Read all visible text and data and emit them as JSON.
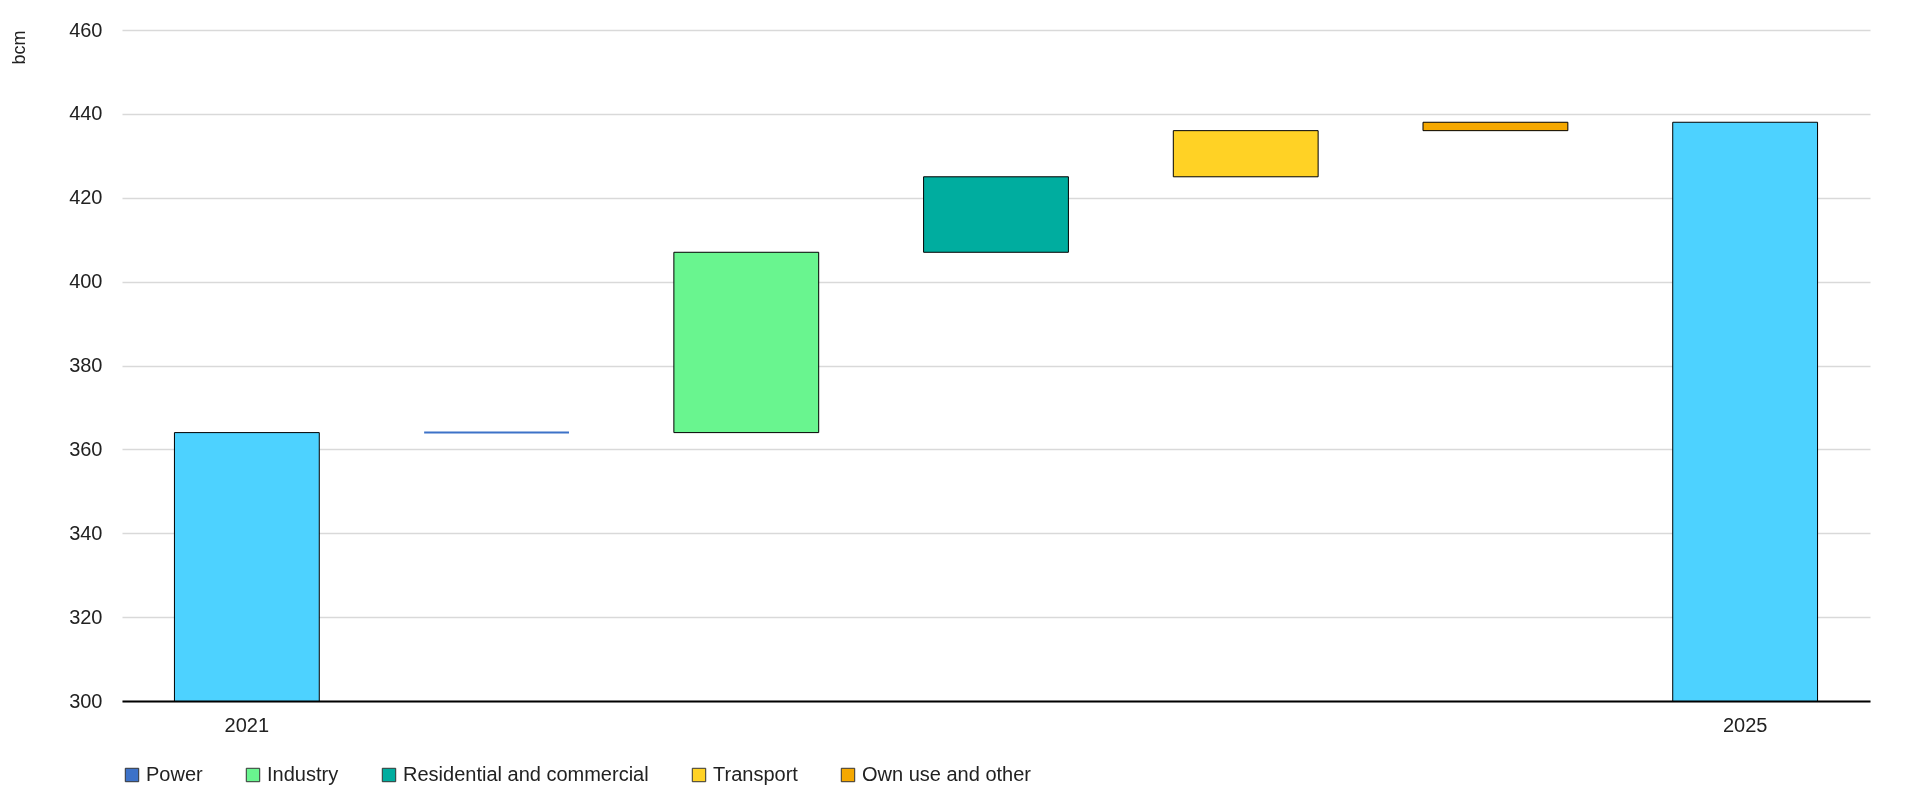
{
  "chart_data": {
    "type": "bar",
    "ylabel": "bcm",
    "categories": [
      "2021",
      null,
      null,
      null,
      null,
      null,
      "2025"
    ],
    "series": [
      {
        "color": "#4dd2ff",
        "values": [
          364,
          null,
          null,
          null,
          null,
          null,
          438
        ]
      },
      {
        "name": "Power",
        "color": "#3d72c8",
        "values": [
          null,
          0,
          null,
          null,
          null,
          null,
          null
        ],
        "base": [
          null,
          364,
          null,
          null,
          null,
          null,
          null
        ]
      },
      {
        "name": "Industry",
        "color": "#69f58f",
        "values": [
          null,
          null,
          43,
          null,
          null,
          null,
          null
        ],
        "base": [
          null,
          null,
          364,
          null,
          null,
          null,
          null
        ]
      },
      {
        "name": "Residential and commercial",
        "color": "#00ad9f",
        "values": [
          null,
          null,
          null,
          18,
          null,
          null,
          null
        ],
        "base": [
          null,
          null,
          null,
          407,
          null,
          null,
          null
        ]
      },
      {
        "name": "Transport",
        "color": "#ffd225",
        "values": [
          null,
          null,
          null,
          null,
          11,
          null,
          null
        ],
        "base": [
          null,
          null,
          null,
          null,
          425,
          null,
          null
        ]
      },
      {
        "name": "Own use and other",
        "color": "#f5a800",
        "values": [
          null,
          null,
          null,
          null,
          null,
          2,
          null
        ],
        "base": [
          null,
          null,
          null,
          null,
          null,
          436,
          null
        ]
      }
    ],
    "ylim": [
      300,
      460
    ],
    "yticks": [
      300,
      320,
      340,
      360,
      380,
      400,
      420,
      440,
      460
    ],
    "grid": "y",
    "legend": "bottom"
  }
}
